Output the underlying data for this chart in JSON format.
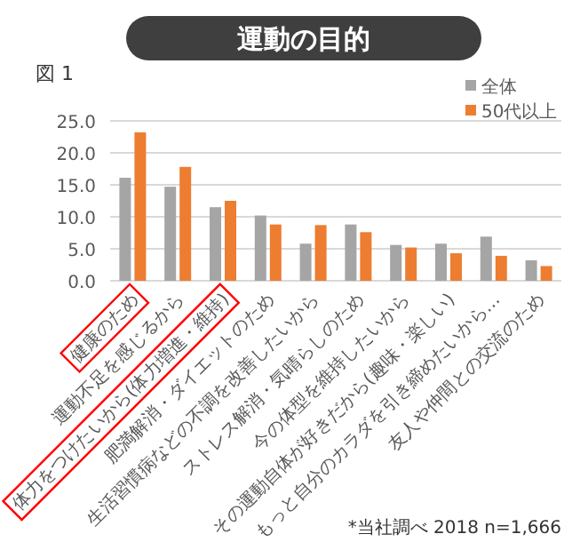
{
  "chart_data": {
    "type": "bar",
    "title": "運動の目的",
    "subtitle": "図 1",
    "categories": [
      "健康のため",
      "運動不足を感じるから",
      "体力をつけたいから(体力増進・維持)",
      "肥満解消・ダイエットのため",
      "生活習慣病などの不調を改善したいから",
      "ストレス解消・気晴らしのため",
      "今の体型を維持したいから",
      "その運動自体が好きだから(趣味・楽しい)",
      "もっと自分のカラダを引き締めたいから…",
      "友人や仲間との交流のため"
    ],
    "series": [
      {
        "name": "全体",
        "color": "#a5a5a5",
        "values": [
          16.1,
          14.7,
          11.5,
          10.2,
          5.8,
          8.8,
          5.6,
          5.8,
          6.9,
          3.2
        ]
      },
      {
        "name": "50代以上",
        "color": "#ed7d31",
        "values": [
          23.2,
          17.8,
          12.5,
          8.8,
          8.7,
          7.6,
          5.2,
          4.3,
          3.9,
          2.3
        ]
      }
    ],
    "ylim": [
      0,
      25
    ],
    "yticks": [
      {
        "value": 0,
        "label": "0.0"
      },
      {
        "value": 5,
        "label": "5.0"
      },
      {
        "value": 10,
        "label": "10.0"
      },
      {
        "value": 15,
        "label": "15.0"
      },
      {
        "value": 20,
        "label": "20.0"
      },
      {
        "value": 25,
        "label": "25.0"
      }
    ],
    "grid": "y",
    "legend": "top right",
    "annotations": [
      "*当社調べ 2018 n=1,666"
    ]
  }
}
